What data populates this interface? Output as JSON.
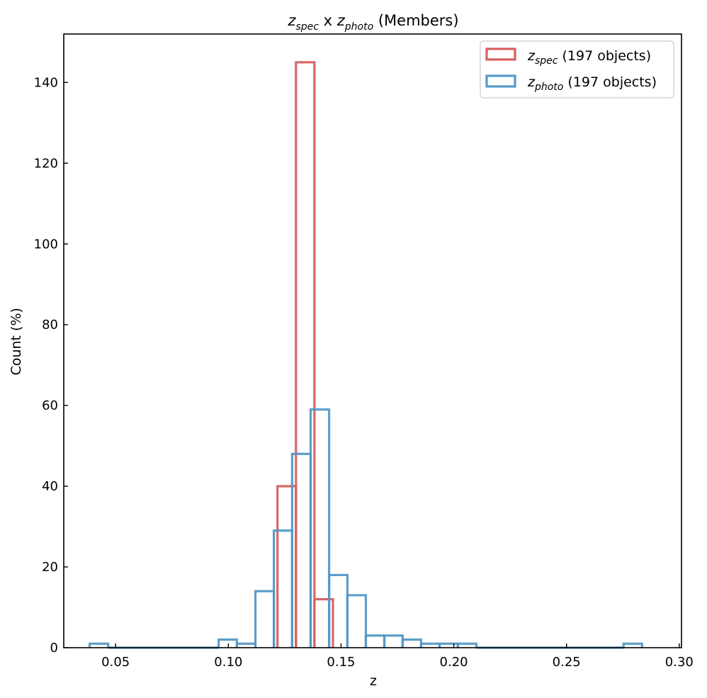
{
  "chart_data": {
    "type": "histogram",
    "title": {
      "sym1": "z",
      "sub1": "spec",
      "mid": " x ",
      "sym2": "z",
      "sub2": "photo",
      "tail": " (Members)"
    },
    "xlabel": "z",
    "ylabel": "Count (%)",
    "xlim": [
      0.027,
      0.301
    ],
    "ylim": [
      0,
      152
    ],
    "xticks": [
      "0.05",
      "0.10",
      "0.15",
      "0.20",
      "0.25",
      "0.30"
    ],
    "yticks": [
      "0",
      "20",
      "40",
      "60",
      "80",
      "100",
      "120",
      "140"
    ],
    "legend_position": "top-right",
    "bin_edges": [
      0.0385,
      0.0467,
      0.0548,
      0.063,
      0.0712,
      0.0793,
      0.0875,
      0.0957,
      0.1038,
      0.112,
      0.1202,
      0.1283,
      0.1365,
      0.1447,
      0.1528,
      0.161,
      0.1692,
      0.1773,
      0.1855,
      0.1937,
      0.2018,
      0.21,
      0.2182,
      0.2263,
      0.2345,
      0.2427,
      0.2508,
      0.259,
      0.2672,
      0.2753,
      0.2835
    ],
    "series": [
      {
        "sym": "z",
        "sub": "spec",
        "suffix": " (197 objects)",
        "color": "#d65f5f",
        "bins": [
          [
            0.1218,
            0.13,
            40
          ],
          [
            0.13,
            0.1382,
            145
          ],
          [
            0.1382,
            0.1464,
            12
          ]
        ]
      },
      {
        "sym": "z",
        "sub": "photo",
        "suffix": " (197 objects)",
        "color": "#5499c7",
        "bins": [
          [
            0.0385,
            0.0467,
            1
          ],
          [
            0.0467,
            0.0548,
            0
          ],
          [
            0.0548,
            0.063,
            0
          ],
          [
            0.063,
            0.0712,
            0
          ],
          [
            0.0712,
            0.0793,
            0
          ],
          [
            0.0793,
            0.0875,
            0
          ],
          [
            0.0875,
            0.0957,
            0
          ],
          [
            0.0957,
            0.1038,
            2
          ],
          [
            0.1038,
            0.112,
            1
          ],
          [
            0.112,
            0.1202,
            14
          ],
          [
            0.1202,
            0.1283,
            29
          ],
          [
            0.1283,
            0.1365,
            48
          ],
          [
            0.1365,
            0.1447,
            59
          ],
          [
            0.1447,
            0.1528,
            18
          ],
          [
            0.1528,
            0.161,
            13
          ],
          [
            0.161,
            0.1692,
            3
          ],
          [
            0.1692,
            0.1773,
            3
          ],
          [
            0.1773,
            0.1855,
            2
          ],
          [
            0.1855,
            0.1937,
            1
          ],
          [
            0.1937,
            0.2018,
            1
          ],
          [
            0.2018,
            0.21,
            1
          ],
          [
            0.21,
            0.2182,
            0
          ],
          [
            0.2182,
            0.2263,
            0
          ],
          [
            0.2263,
            0.2345,
            0
          ],
          [
            0.2345,
            0.2427,
            0
          ],
          [
            0.2427,
            0.2508,
            0
          ],
          [
            0.2508,
            0.259,
            0
          ],
          [
            0.259,
            0.2672,
            0
          ],
          [
            0.2672,
            0.2753,
            0
          ],
          [
            0.2753,
            0.2835,
            1
          ]
        ]
      }
    ]
  }
}
